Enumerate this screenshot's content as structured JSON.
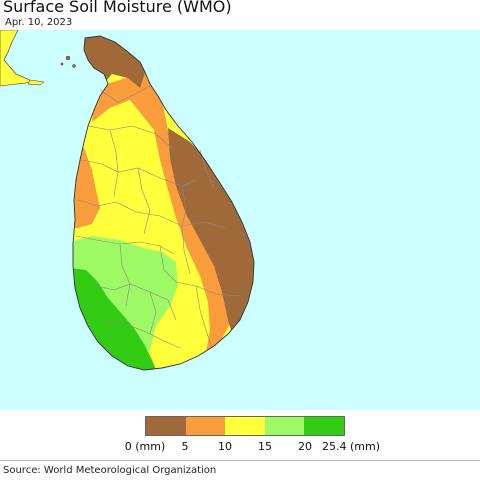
{
  "header": {
    "title": "Surface Soil Moisture (WMO)",
    "date": "Apr. 10, 2023"
  },
  "legend": {
    "bins": [
      {
        "color": "#a0693a",
        "from": "0",
        "to": "5"
      },
      {
        "color": "#f99c3c",
        "from": "5",
        "to": "10"
      },
      {
        "color": "#ffff3c",
        "from": "10",
        "to": "15"
      },
      {
        "color": "#9dfa64",
        "from": "15",
        "to": "20"
      },
      {
        "color": "#33cc14",
        "from": "20",
        "to": "25.4"
      }
    ],
    "labels": [
      "0 (mm)",
      "5",
      "10",
      "15",
      "20",
      "25.4 (mm)"
    ]
  },
  "colors": {
    "ocean": "#ccffff",
    "boundary": "#888888"
  },
  "footer": {
    "source": "Source: World Meteorological Organization"
  }
}
